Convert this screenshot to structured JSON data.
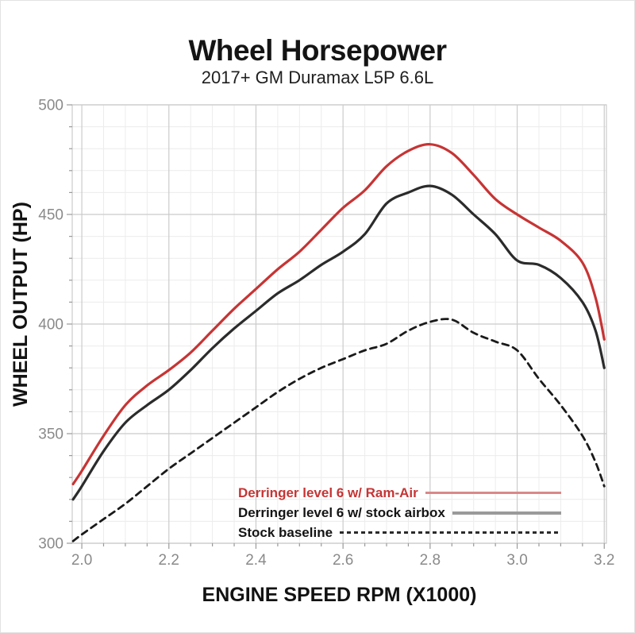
{
  "chart": {
    "title": "Wheel Horsepower",
    "subtitle": "2017+ GM Duramax L5P 6.6L"
  },
  "colors": {
    "ram_air_line": "#c73434",
    "stock_airbox_line": "#2b2b2b",
    "baseline_line": "#1a1a1a",
    "legend_ram_air_text": "#c63434",
    "legend_dark_text": "#141414",
    "legend_ram_air_swatch": "#d98888",
    "legend_stock_airbox_swatch": "#9a9a9a",
    "grid_major": "#cbcbcb",
    "grid_minor": "#ececec",
    "tick_label": "#8a8a8a",
    "axis_title": "#121212"
  },
  "chart_data": {
    "type": "line",
    "title": "Wheel Horsepower",
    "subtitle": "2017+ GM Duramax L5P 6.6L",
    "xlabel": "ENGINE SPEED RPM (X1000)",
    "ylabel": "WHEEL OUTPUT (HP)",
    "xlim": [
      1.978,
      3.205
    ],
    "ylim": [
      300,
      500
    ],
    "x_ticks": [
      2.0,
      2.2,
      2.4,
      2.6,
      2.8,
      3.0,
      3.2
    ],
    "y_ticks": [
      300,
      350,
      400,
      450,
      500
    ],
    "x_minor_step": 0.05,
    "y_minor_step": 10,
    "grid": true,
    "legend_position": "inside-bottom-right",
    "x": [
      1.98,
      2.0,
      2.05,
      2.1,
      2.15,
      2.2,
      2.25,
      2.3,
      2.35,
      2.4,
      2.45,
      2.5,
      2.55,
      2.6,
      2.65,
      2.7,
      2.75,
      2.8,
      2.85,
      2.9,
      2.95,
      3.0,
      3.05,
      3.1,
      3.15,
      3.18,
      3.2
    ],
    "series": [
      {
        "name": "Derringer level 6 w/ Ram-Air",
        "style": "solid",
        "values": [
          327,
          333,
          349,
          363,
          372,
          379,
          387,
          397,
          407,
          416,
          425,
          433,
          443,
          453,
          461,
          472,
          479,
          482,
          478,
          468,
          457,
          450,
          444,
          438,
          428,
          412,
          393
        ]
      },
      {
        "name": "Derringer level 6 w/ stock airbox",
        "style": "solid",
        "values": [
          320,
          326,
          342,
          355,
          363,
          370,
          379,
          389,
          398,
          406,
          414,
          420,
          427,
          433,
          441,
          455,
          460,
          463,
          459,
          450,
          441,
          429,
          427,
          421,
          410,
          397,
          380
        ]
      },
      {
        "name": "Stock baseline",
        "style": "dashed",
        "values": [
          301,
          304,
          311,
          318,
          326,
          334,
          341,
          348,
          355,
          362,
          369,
          375,
          380,
          384,
          388,
          391,
          397,
          401,
          402,
          396,
          392,
          388,
          375,
          363,
          349,
          337,
          326
        ]
      }
    ]
  }
}
